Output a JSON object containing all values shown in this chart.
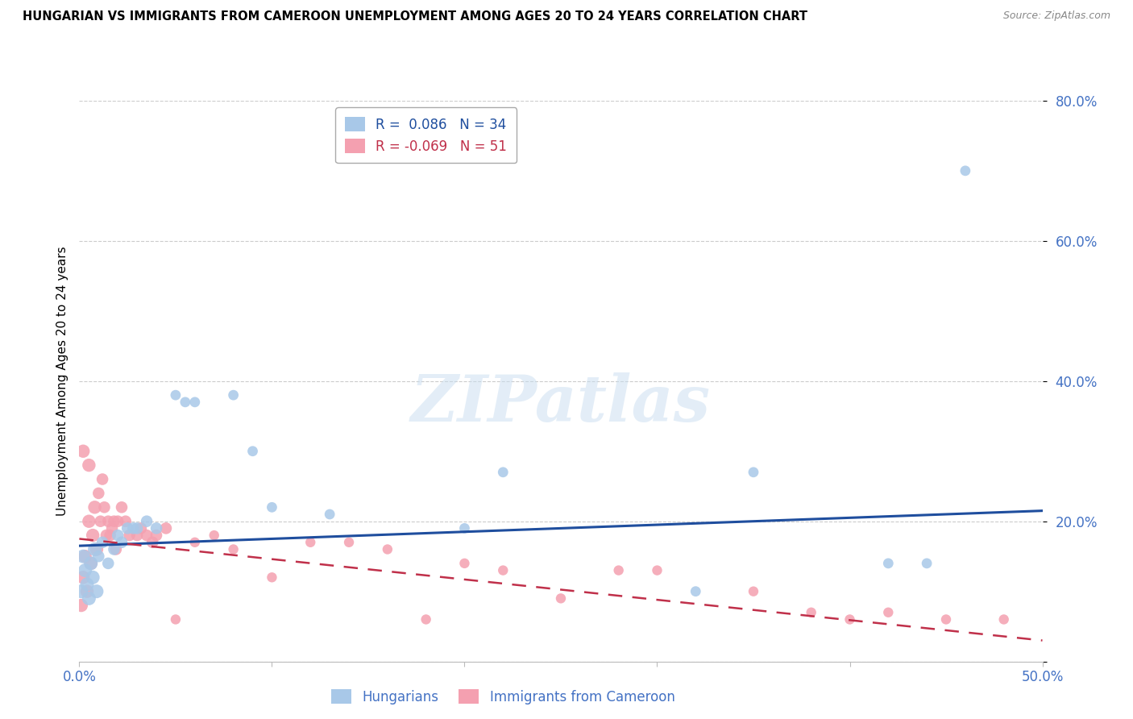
{
  "title": "HUNGARIAN VS IMMIGRANTS FROM CAMEROON UNEMPLOYMENT AMONG AGES 20 TO 24 YEARS CORRELATION CHART",
  "source": "Source: ZipAtlas.com",
  "ylabel": "Unemployment Among Ages 20 to 24 years",
  "xlim": [
    0.0,
    0.5
  ],
  "ylim": [
    0.0,
    0.8
  ],
  "yticks": [
    0.0,
    0.2,
    0.4,
    0.6,
    0.8
  ],
  "xticks": [
    0.0,
    0.1,
    0.2,
    0.3,
    0.4,
    0.5
  ],
  "ytick_labels": [
    "",
    "20.0%",
    "40.0%",
    "60.0%",
    "80.0%"
  ],
  "xtick_labels": [
    "0.0%",
    "",
    "",
    "",
    "",
    "50.0%"
  ],
  "axis_color": "#4472c4",
  "legend_label_hungarians": "Hungarians",
  "legend_label_cameroon": "Immigrants from Cameroon",
  "hungarian_color": "#a8c8e8",
  "cameroon_color": "#f4a0b0",
  "hungarian_line_color": "#1f4e9e",
  "cameroon_line_color": "#c0304a",
  "hun_line_x": [
    0.0,
    0.5
  ],
  "hun_line_y": [
    0.165,
    0.215
  ],
  "cam_line_x": [
    0.0,
    0.5
  ],
  "cam_line_y": [
    0.175,
    0.03
  ],
  "hungarian_x": [
    0.001,
    0.002,
    0.003,
    0.004,
    0.005,
    0.006,
    0.007,
    0.008,
    0.009,
    0.01,
    0.012,
    0.015,
    0.018,
    0.02,
    0.022,
    0.025,
    0.028,
    0.03,
    0.035,
    0.04,
    0.05,
    0.055,
    0.06,
    0.08,
    0.09,
    0.1,
    0.13,
    0.2,
    0.22,
    0.32,
    0.35,
    0.42,
    0.44,
    0.46
  ],
  "hungarian_y": [
    0.1,
    0.15,
    0.13,
    0.11,
    0.09,
    0.14,
    0.12,
    0.16,
    0.1,
    0.15,
    0.17,
    0.14,
    0.16,
    0.18,
    0.17,
    0.19,
    0.19,
    0.19,
    0.2,
    0.19,
    0.38,
    0.37,
    0.37,
    0.38,
    0.3,
    0.22,
    0.21,
    0.19,
    0.27,
    0.1,
    0.27,
    0.14,
    0.14,
    0.7
  ],
  "cameroon_x": [
    0.001,
    0.002,
    0.002,
    0.003,
    0.004,
    0.005,
    0.005,
    0.006,
    0.007,
    0.008,
    0.009,
    0.01,
    0.011,
    0.012,
    0.013,
    0.014,
    0.015,
    0.016,
    0.017,
    0.018,
    0.019,
    0.02,
    0.022,
    0.024,
    0.026,
    0.03,
    0.032,
    0.035,
    0.038,
    0.04,
    0.045,
    0.05,
    0.06,
    0.07,
    0.08,
    0.1,
    0.12,
    0.14,
    0.16,
    0.18,
    0.2,
    0.22,
    0.25,
    0.28,
    0.3,
    0.35,
    0.38,
    0.4,
    0.42,
    0.45,
    0.48
  ],
  "cameroon_y": [
    0.08,
    0.12,
    0.3,
    0.15,
    0.1,
    0.2,
    0.28,
    0.14,
    0.18,
    0.22,
    0.16,
    0.24,
    0.2,
    0.26,
    0.22,
    0.18,
    0.2,
    0.18,
    0.19,
    0.2,
    0.16,
    0.2,
    0.22,
    0.2,
    0.18,
    0.18,
    0.19,
    0.18,
    0.17,
    0.18,
    0.19,
    0.06,
    0.17,
    0.18,
    0.16,
    0.12,
    0.17,
    0.17,
    0.16,
    0.06,
    0.14,
    0.13,
    0.09,
    0.13,
    0.13,
    0.1,
    0.07,
    0.06,
    0.07,
    0.06,
    0.06
  ]
}
